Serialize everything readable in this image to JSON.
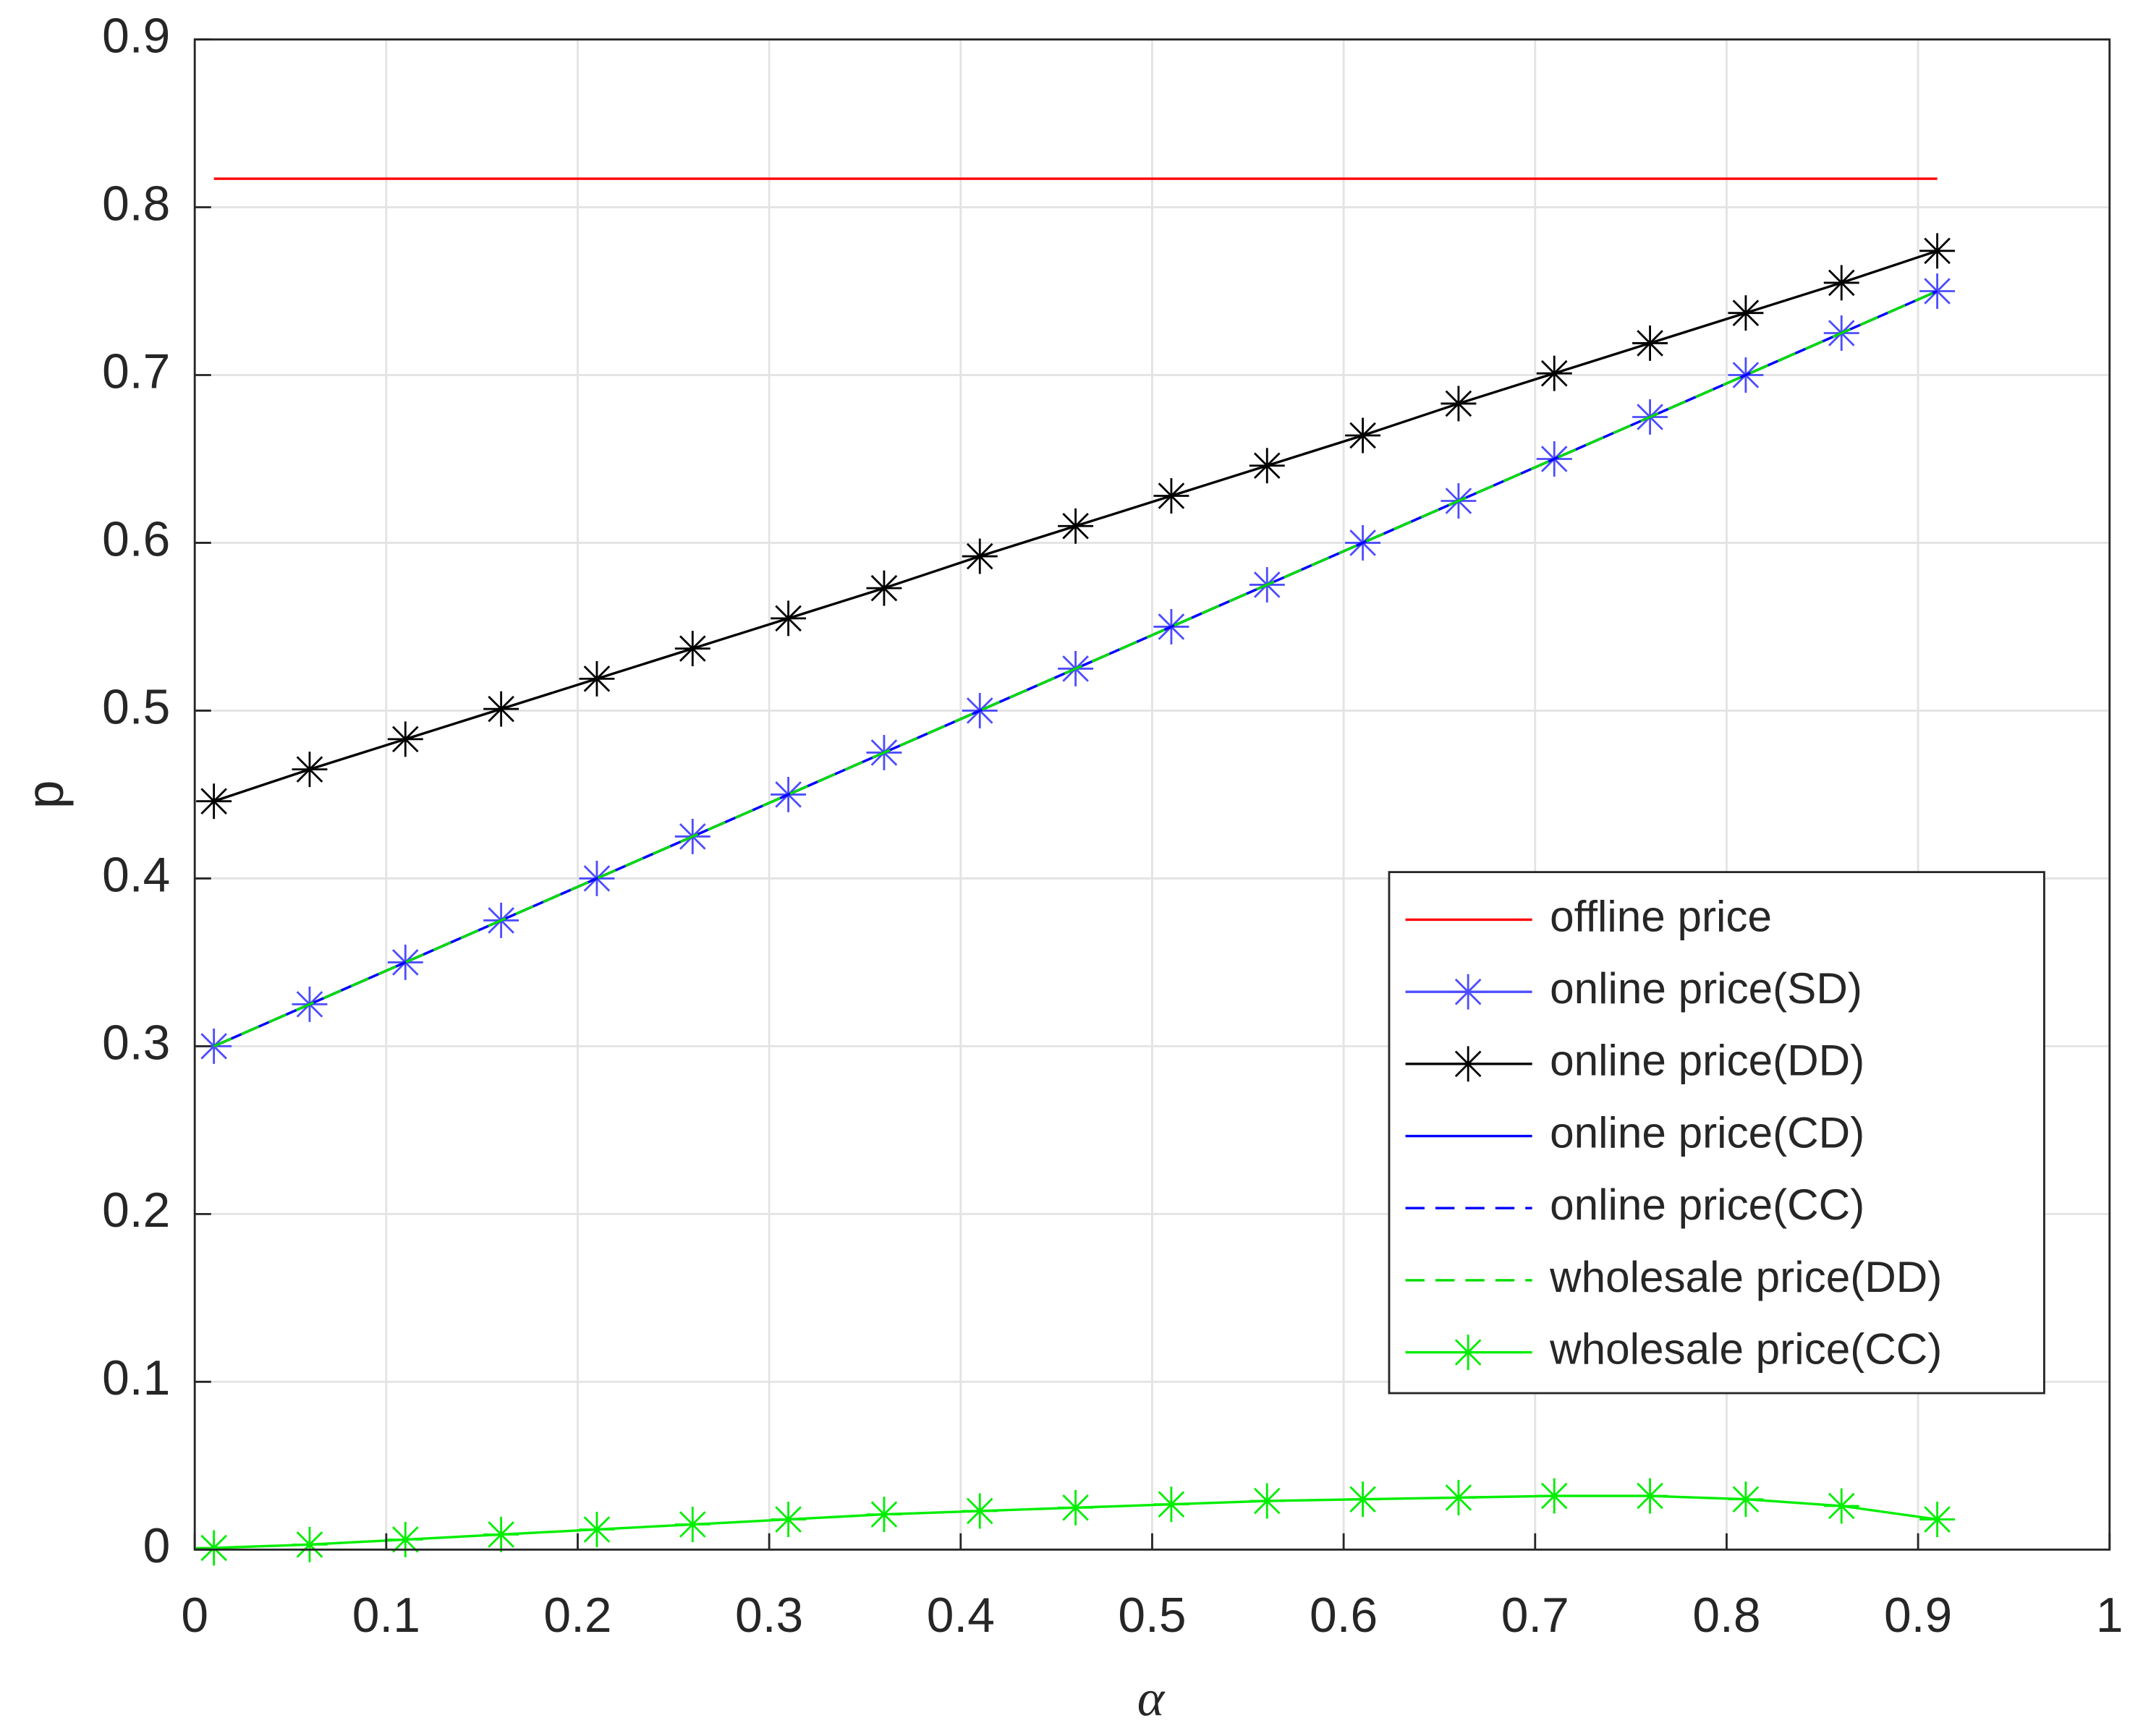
{
  "chart_data": {
    "type": "line",
    "x_label": "α",
    "y_label": "p",
    "x": [
      0.01,
      0.06,
      0.11,
      0.16,
      0.21,
      0.26,
      0.31,
      0.36,
      0.41,
      0.46,
      0.51,
      0.56,
      0.61,
      0.66,
      0.71,
      0.76,
      0.81,
      0.86,
      0.91
    ],
    "series": [
      {
        "name": "offline price",
        "color": "#ff0000",
        "dash": false,
        "marker": false,
        "values": [
          0.817,
          0.817,
          0.817,
          0.817,
          0.817,
          0.817,
          0.817,
          0.817,
          0.817,
          0.817,
          0.817,
          0.817,
          0.817,
          0.817,
          0.817,
          0.817,
          0.817,
          0.817,
          0.817
        ]
      },
      {
        "name": "online price(SD)",
        "color": "#4d4dff",
        "dash": false,
        "marker": true,
        "values": [
          0.3,
          0.325,
          0.35,
          0.375,
          0.4,
          0.425,
          0.45,
          0.475,
          0.5,
          0.525,
          0.55,
          0.575,
          0.6,
          0.625,
          0.65,
          0.675,
          0.7,
          0.725,
          0.75
        ]
      },
      {
        "name": "online price(DD)",
        "color": "#000000",
        "dash": false,
        "marker": true,
        "values": [
          0.446,
          0.465,
          0.483,
          0.501,
          0.519,
          0.537,
          0.555,
          0.573,
          0.592,
          0.61,
          0.628,
          0.646,
          0.664,
          0.683,
          0.701,
          0.719,
          0.737,
          0.755,
          0.774
        ]
      },
      {
        "name": "online price(CD)",
        "color": "#0000ff",
        "dash": false,
        "marker": false,
        "values": [
          0.3,
          0.325,
          0.35,
          0.375,
          0.4,
          0.425,
          0.45,
          0.475,
          0.5,
          0.525,
          0.55,
          0.575,
          0.6,
          0.625,
          0.65,
          0.675,
          0.7,
          0.725,
          0.75
        ]
      },
      {
        "name": "online price(CC)",
        "color": "#0000ff",
        "dash": true,
        "marker": false,
        "values": [
          0.3,
          0.325,
          0.35,
          0.375,
          0.4,
          0.425,
          0.45,
          0.475,
          0.5,
          0.525,
          0.55,
          0.575,
          0.6,
          0.625,
          0.65,
          0.675,
          0.7,
          0.725,
          0.75
        ]
      },
      {
        "name": "wholesale price(DD)",
        "color": "#00dd00",
        "dash": true,
        "marker": false,
        "values": [
          0.3,
          0.325,
          0.35,
          0.375,
          0.4,
          0.425,
          0.45,
          0.475,
          0.5,
          0.525,
          0.55,
          0.575,
          0.6,
          0.625,
          0.65,
          0.675,
          0.7,
          0.725,
          0.75
        ]
      },
      {
        "name": "wholesale price(CC)",
        "color": "#00ee00",
        "dash": false,
        "marker": true,
        "values": [
          0.001,
          0.003,
          0.006,
          0.009,
          0.012,
          0.015,
          0.018,
          0.021,
          0.023,
          0.025,
          0.027,
          0.029,
          0.03,
          0.031,
          0.032,
          0.032,
          0.03,
          0.026,
          0.018
        ]
      }
    ],
    "xlim": [
      0,
      1
    ],
    "ylim": [
      0,
      0.9
    ],
    "xticks": [
      0,
      0.1,
      0.2,
      0.3,
      0.4,
      0.5,
      0.6,
      0.7,
      0.8,
      0.9,
      1
    ],
    "yticks": [
      0,
      0.1,
      0.2,
      0.3,
      0.4,
      0.5,
      0.6,
      0.7,
      0.8,
      0.9
    ],
    "grid": true,
    "legend": "right"
  }
}
